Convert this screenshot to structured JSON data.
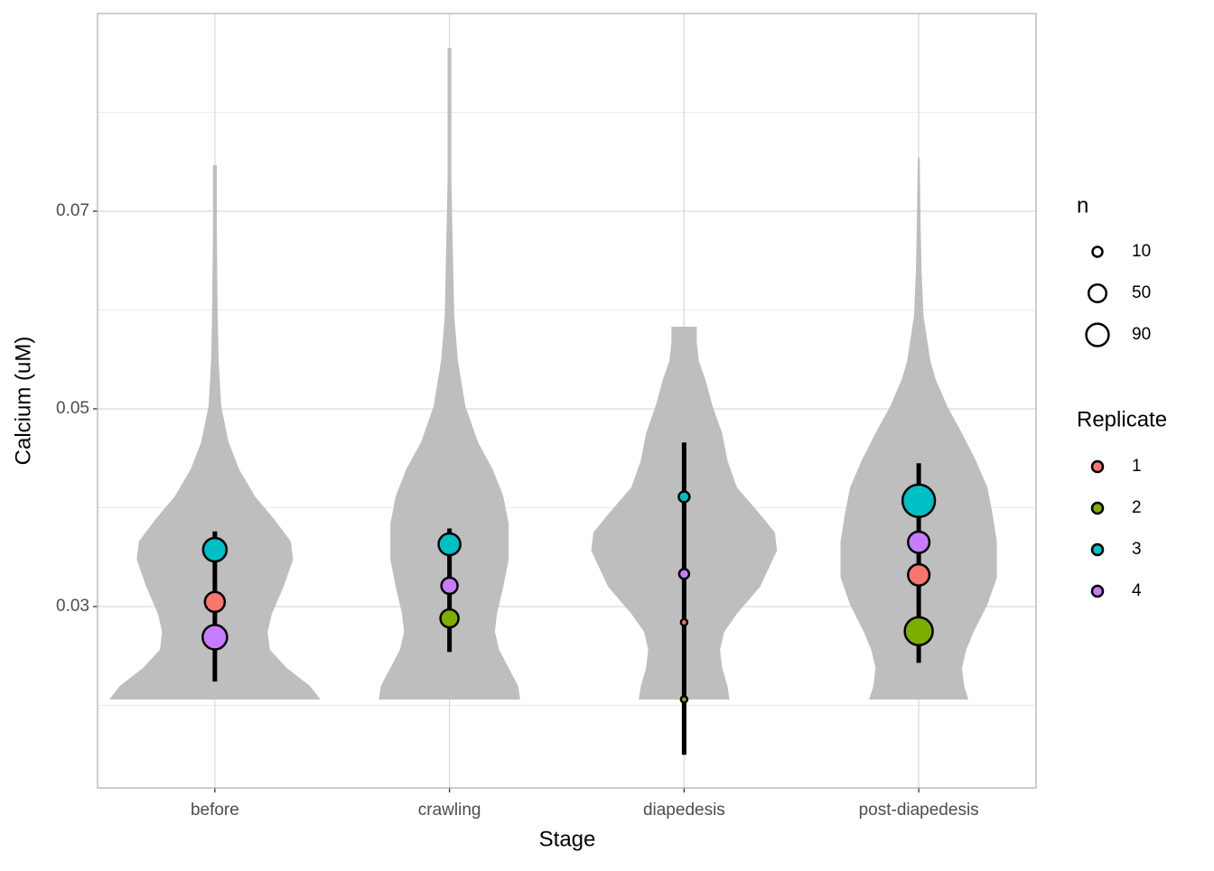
{
  "chart_data": {
    "type": "superplot",
    "x_label": "Stage",
    "y_label": "Calcium (uM)",
    "categories": [
      "before",
      "crawling",
      "diapedesis",
      "post-diapedesis"
    ],
    "ylim": [
      0.01164,
      0.09
    ],
    "yticks": [
      0.03,
      0.05,
      0.07
    ],
    "minor_yticks": [
      0.02,
      0.04,
      0.06,
      0.08
    ],
    "grid": true,
    "violin_color": "#bebebe",
    "violins": [
      {
        "y": [
          0.02059,
          0.02196,
          0.02379,
          0.02562,
          0.02744,
          0.02927,
          0.03201,
          0.03475,
          0.03658,
          0.03886,
          0.04114,
          0.04388,
          0.04662,
          0.05027,
          0.05484,
          0.05941,
          0.06854,
          0.07466
        ],
        "width": [
          1,
          0.9,
          0.68,
          0.52,
          0.5,
          0.54,
          0.65,
          0.74,
          0.72,
          0.56,
          0.38,
          0.23,
          0.13,
          0.06,
          0.036,
          0.027,
          0.018,
          0.018
        ]
      },
      {
        "y": [
          0.02059,
          0.02196,
          0.02379,
          0.02562,
          0.02744,
          0.02927,
          0.03201,
          0.03475,
          0.0384,
          0.04114,
          0.04388,
          0.04662,
          0.05027,
          0.05484,
          0.05941,
          0.064,
          0.0731,
          0.0865
        ],
        "width": [
          0.67,
          0.65,
          0.56,
          0.47,
          0.43,
          0.45,
          0.51,
          0.56,
          0.56,
          0.51,
          0.41,
          0.27,
          0.15,
          0.08,
          0.045,
          0.036,
          0.018,
          0.018
        ]
      },
      {
        "y": [
          0.02059,
          0.02196,
          0.02379,
          0.02562,
          0.02744,
          0.02927,
          0.03201,
          0.03566,
          0.03749,
          0.03932,
          0.04205,
          0.04479,
          0.04753,
          0.05027,
          0.05301,
          0.05484,
          0.05667,
          0.05831
        ],
        "width": [
          0.43,
          0.41,
          0.36,
          0.34,
          0.38,
          0.5,
          0.72,
          0.88,
          0.86,
          0.72,
          0.5,
          0.41,
          0.36,
          0.27,
          0.2,
          0.14,
          0.12,
          0.12
        ]
      },
      {
        "y": [
          0.02059,
          0.02196,
          0.02379,
          0.02562,
          0.02744,
          0.03018,
          0.03292,
          0.03658,
          0.03932,
          0.04205,
          0.04479,
          0.04753,
          0.05027,
          0.05301,
          0.05484,
          0.05941,
          0.064,
          0.06854,
          0.0754
        ],
        "width": [
          0.47,
          0.43,
          0.41,
          0.45,
          0.52,
          0.65,
          0.74,
          0.74,
          0.7,
          0.65,
          0.54,
          0.41,
          0.27,
          0.16,
          0.11,
          0.045,
          0.027,
          0.018,
          0.009
        ]
      }
    ],
    "error_bars": [
      {
        "low": 0.0224,
        "high": 0.0376
      },
      {
        "low": 0.0254,
        "high": 0.0379
      },
      {
        "low": 0.015,
        "high": 0.0466
      },
      {
        "low": 0.0243,
        "high": 0.0445
      }
    ],
    "series": [
      {
        "name": "1",
        "color": "#F8766D",
        "values": [
          0.03046,
          null,
          0.0284,
          0.0332
        ],
        "sizes": [
          67,
          null,
          2,
          80
        ]
      },
      {
        "name": "2",
        "color": "#7CAE00",
        "values": [
          null,
          0.0288,
          0.0206,
          0.0275
        ],
        "sizes": [
          null,
          53,
          2,
          150
        ]
      },
      {
        "name": "3",
        "color": "#00BFC4",
        "values": [
          0.03575,
          0.0363,
          0.0411,
          0.0407
        ],
        "sizes": [
          100,
          83,
          13,
          210
        ]
      },
      {
        "name": "4",
        "color": "#C77CFF",
        "values": [
          0.0269,
          0.0321,
          0.0333,
          0.0365
        ],
        "sizes": [
          110,
          40,
          10,
          80
        ]
      }
    ],
    "size_legend": {
      "title": "n",
      "values": [
        10,
        50,
        90
      ]
    },
    "color_legend_title": "Replicate"
  }
}
